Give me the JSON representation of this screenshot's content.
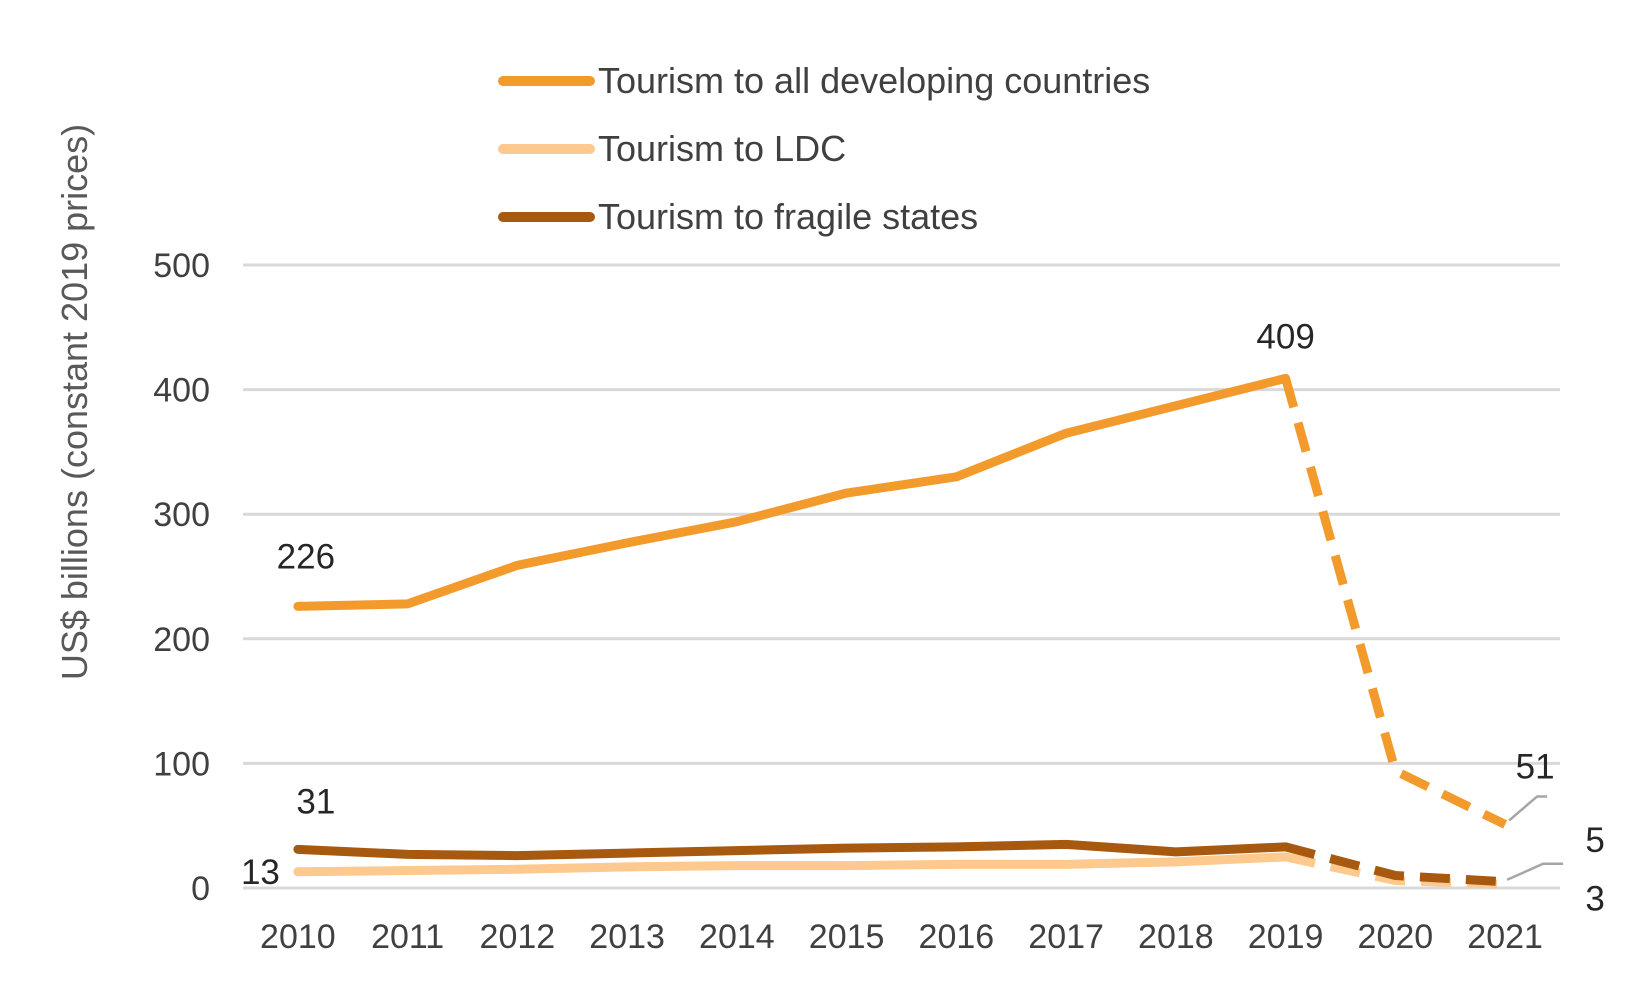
{
  "chart_data": {
    "type": "line",
    "title": "",
    "xlabel": "",
    "ylabel": "US$ billions (constant 2019 prices)",
    "categories": [
      "2010",
      "2011",
      "2012",
      "2013",
      "2014",
      "2015",
      "2016",
      "2017",
      "2018",
      "2019",
      "2020",
      "2021"
    ],
    "ylim": [
      0,
      500
    ],
    "yticks": [
      "0",
      "100",
      "200",
      "300",
      "400",
      "500"
    ],
    "grid": "horizontal",
    "legend_position": "top",
    "dashed_from": "2019",
    "series": [
      {
        "name": "Tourism to all developing countries",
        "color": "#F29B2C",
        "values": [
          226,
          228,
          259,
          277,
          294,
          317,
          330,
          365,
          387,
          409,
          94,
          51
        ]
      },
      {
        "name": "Tourism to LDC",
        "color": "#FDC98E",
        "values": [
          13,
          14,
          15,
          17,
          18,
          18,
          19,
          19,
          21,
          25,
          6,
          3
        ]
      },
      {
        "name": "Tourism to fragile states",
        "color": "#A6590F",
        "values": [
          31,
          27,
          26,
          28,
          30,
          32,
          33,
          35,
          29,
          33,
          10,
          5
        ]
      }
    ],
    "data_labels": [
      {
        "series": 0,
        "index": 0,
        "text": "226"
      },
      {
        "series": 0,
        "index": 9,
        "text": "409"
      },
      {
        "series": 0,
        "index": 11,
        "text": "51"
      },
      {
        "series": 2,
        "index": 0,
        "text": "31"
      },
      {
        "series": 1,
        "index": 0,
        "text": "13"
      },
      {
        "series": 2,
        "index": 11,
        "text": "5"
      },
      {
        "series": 1,
        "index": 11,
        "text": "3"
      }
    ]
  }
}
